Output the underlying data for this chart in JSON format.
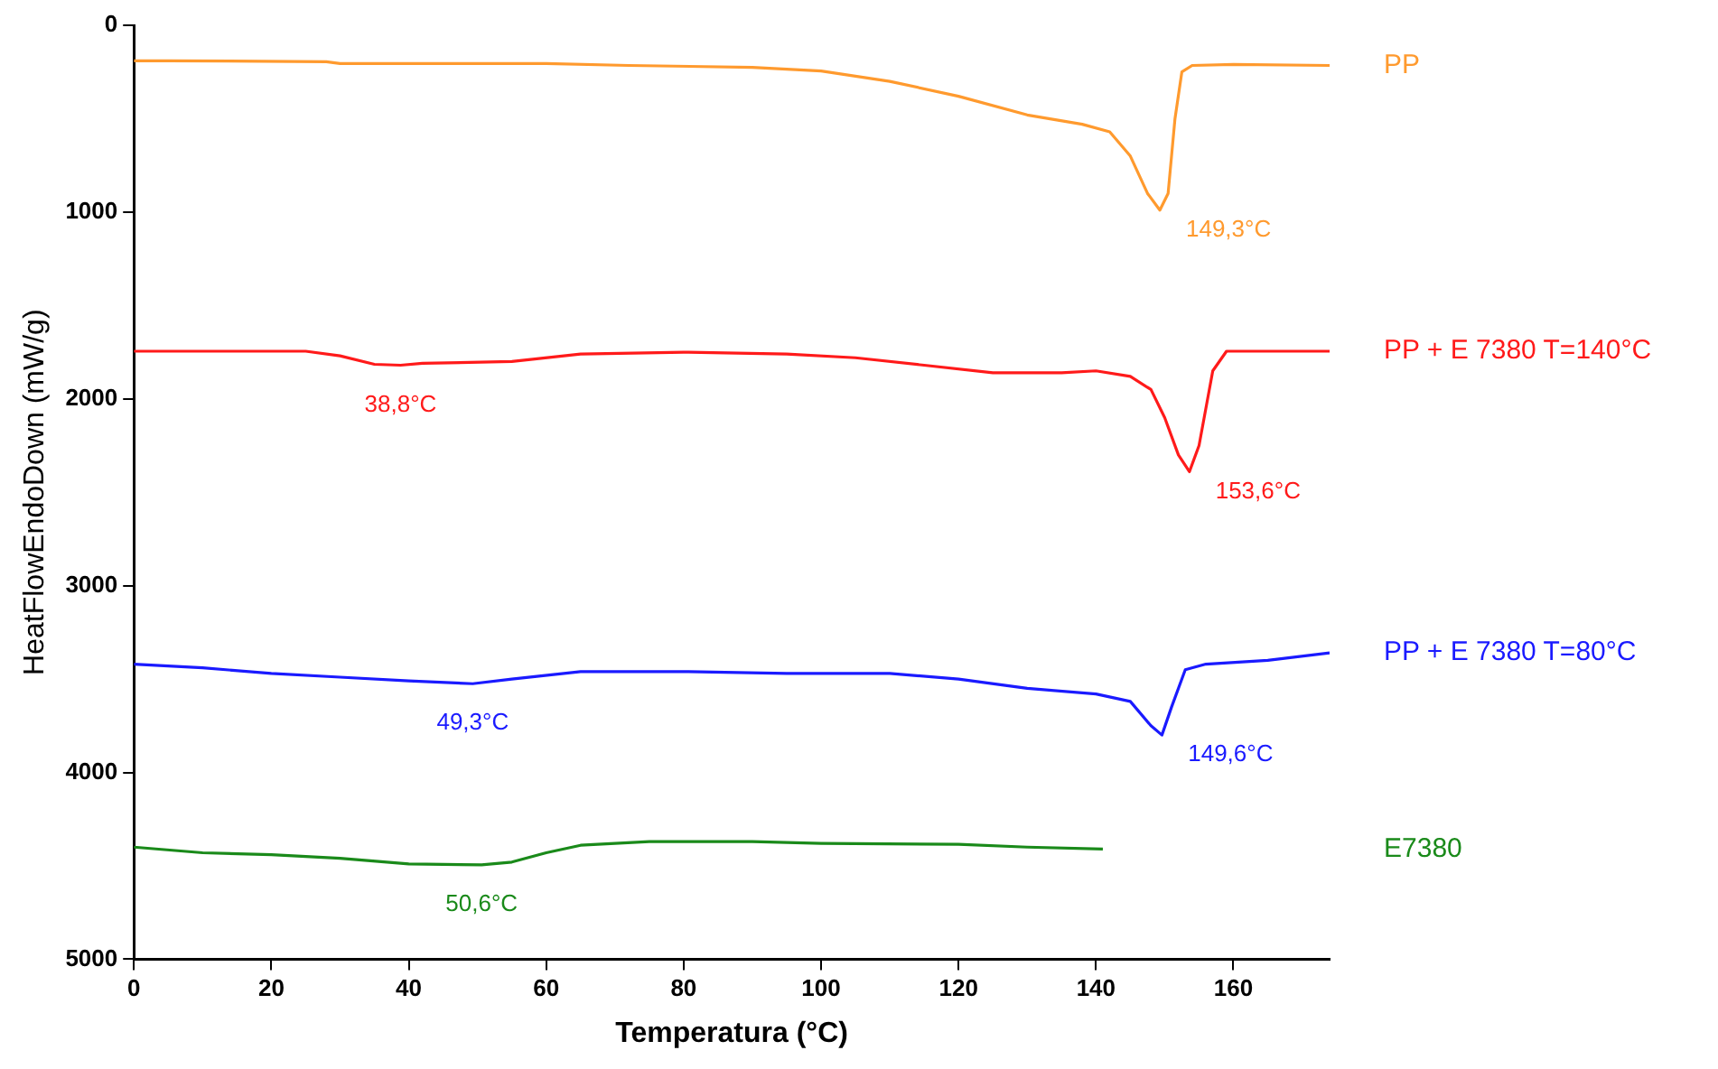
{
  "chart_data": {
    "type": "line",
    "xlabel": "Temperatura (°C)",
    "ylabel": "HeatFlowEndoDown (mW/g)",
    "xlim": [
      0,
      174
    ],
    "xticks": [
      0,
      20,
      40,
      60,
      80,
      100,
      120,
      140,
      160
    ],
    "ylim": [
      5000,
      0
    ],
    "yticks": [
      0,
      1000,
      2000,
      3000,
      4000,
      5000
    ],
    "grid": false,
    "legend": false,
    "marker": "none",
    "line_style": "solid",
    "series": [
      {
        "name": "PP",
        "color": "#ff9a2e",
        "x": [
          0,
          5,
          28,
          30,
          60,
          72,
          90,
          100,
          110,
          120,
          130,
          138,
          142,
          145,
          147.5,
          149.3,
          150.5,
          151.5,
          152.5,
          154,
          160,
          174
        ],
        "values": [
          190,
          190,
          195,
          205,
          205,
          215,
          225,
          245,
          300,
          380,
          480,
          530,
          570,
          700,
          900,
          990,
          900,
          500,
          250,
          215,
          210,
          215
        ]
      },
      {
        "name": "PP + E 7380 T=140°C",
        "color": "#ff1a1a",
        "x": [
          0,
          25,
          30,
          35,
          38.8,
          42,
          55,
          65,
          80,
          95,
          105,
          115,
          125,
          135,
          140,
          145,
          148,
          150,
          152,
          153.6,
          155,
          157,
          159,
          174
        ],
        "values": [
          1745,
          1745,
          1770,
          1815,
          1820,
          1810,
          1800,
          1760,
          1750,
          1760,
          1780,
          1820,
          1860,
          1860,
          1850,
          1880,
          1950,
          2100,
          2300,
          2390,
          2250,
          1850,
          1745,
          1745
        ]
      },
      {
        "name": "PP + E 7380 T=80°C",
        "color": "#1a1aff",
        "x": [
          0,
          10,
          20,
          30,
          40,
          49.3,
          55,
          65,
          80,
          95,
          110,
          120,
          130,
          140,
          145,
          148,
          149.6,
          151,
          153,
          156,
          165,
          174
        ],
        "values": [
          3420,
          3440,
          3470,
          3490,
          3510,
          3525,
          3500,
          3460,
          3460,
          3470,
          3470,
          3500,
          3550,
          3580,
          3620,
          3750,
          3800,
          3650,
          3450,
          3420,
          3400,
          3360
        ]
      },
      {
        "name": "E7380",
        "color": "#1a8a1a",
        "x": [
          0,
          10,
          20,
          30,
          40,
          50.6,
          55,
          60,
          65,
          75,
          90,
          100,
          120,
          130,
          141
        ],
        "values": [
          4400,
          4430,
          4440,
          4460,
          4490,
          4495,
          4480,
          4430,
          4390,
          4370,
          4370,
          4380,
          4385,
          4400,
          4410
        ]
      }
    ],
    "annotations": [
      {
        "text": "149,3°C",
        "x": 149.3,
        "y": 990
      },
      {
        "text": "38,8°C",
        "x": 38.8,
        "y": 1820
      },
      {
        "text": "153,6°C",
        "x": 153.6,
        "y": 2390
      },
      {
        "text": "49,3°C",
        "x": 49.3,
        "y": 3525
      },
      {
        "text": "149,6°C",
        "x": 149.6,
        "y": 3800
      },
      {
        "text": "50,6°C",
        "x": 50.6,
        "y": 4495
      }
    ]
  }
}
